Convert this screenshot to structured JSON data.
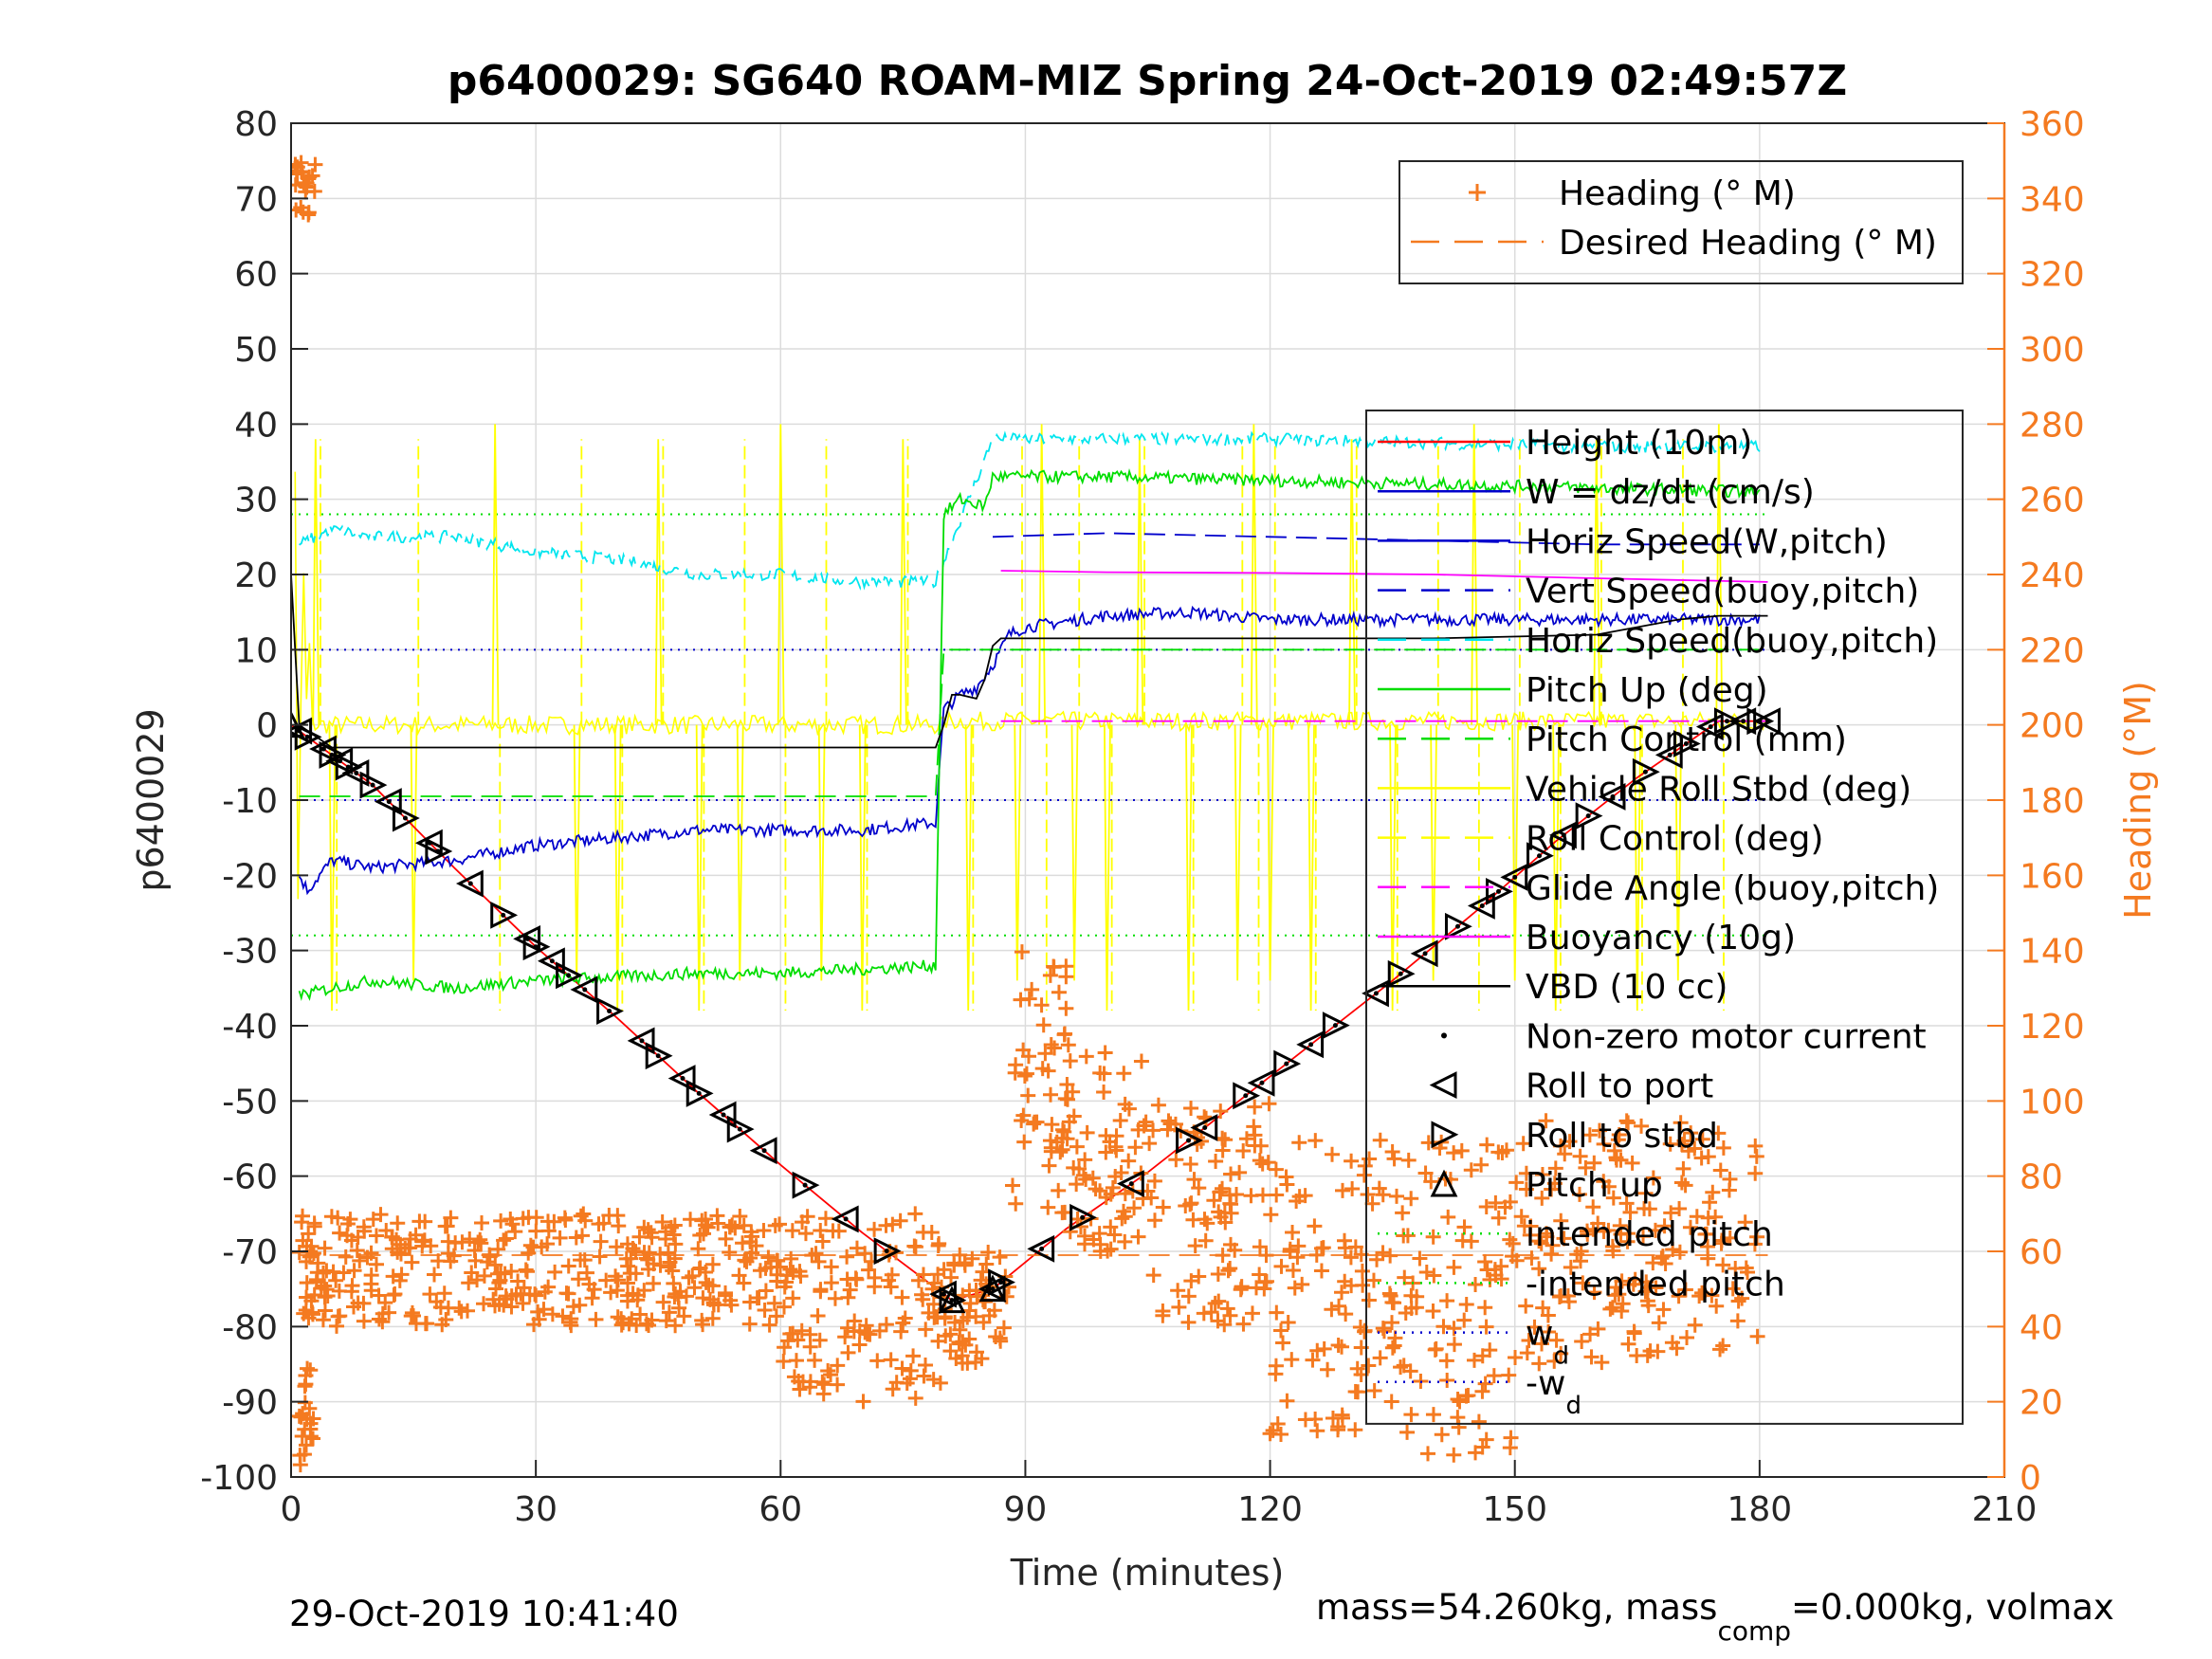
{
  "chart_data": {
    "type": "line",
    "title": "p6400029: SG640 ROAM-MIZ Spring 24-Oct-2019 02:49:57Z",
    "xlabel": "Time (minutes)",
    "ylabel": "p6400029",
    "y2label": "Heading (°M)",
    "xlim": [
      0,
      210
    ],
    "ylim": [
      -100,
      80
    ],
    "y2lim": [
      0,
      360
    ],
    "xticks": [
      0,
      30,
      60,
      90,
      120,
      150,
      180,
      210
    ],
    "yticks": [
      -100,
      -90,
      -80,
      -70,
      -60,
      -50,
      -40,
      -30,
      -20,
      -10,
      0,
      10,
      20,
      30,
      40,
      50,
      60,
      70,
      80
    ],
    "y2ticks": [
      0,
      20,
      40,
      60,
      80,
      100,
      120,
      140,
      160,
      180,
      200,
      220,
      240,
      260,
      280,
      300,
      320,
      340,
      360
    ],
    "grid": true,
    "footer_left": "29-Oct-2019 10:41:40",
    "footer_right_pre": "mass=54.260kg, mass",
    "footer_right_sub": "comp",
    "footer_right_post": "=0.000kg, volmax",
    "legend_heading": {
      "placement": "top-right",
      "entries": [
        {
          "label": "Heading (° M)",
          "color": "#f47a20",
          "style": "plus"
        },
        {
          "label": "Desired Heading (° M)",
          "color": "#f47a20",
          "style": "dash"
        }
      ]
    },
    "legend_main": {
      "placement": "right",
      "entries": [
        {
          "label": "Height (10m)",
          "color": "#ff0000",
          "style": "solid"
        },
        {
          "label": "W = dz/dt (cm/s)",
          "color": "#0000cc",
          "style": "solid"
        },
        {
          "label": "Horiz Speed(W,pitch)",
          "color": "#0000cc",
          "style": "solid"
        },
        {
          "label": "Vert Speed(buoy,pitch)",
          "color": "#0000cc",
          "style": "dash"
        },
        {
          "label": "Horiz Speed(buoy,pitch)",
          "color": "#00e5ee",
          "style": "dash"
        },
        {
          "label": "Pitch Up (deg)",
          "color": "#00dd00",
          "style": "solid"
        },
        {
          "label": "Pitch Control (mm)",
          "color": "#00dd00",
          "style": "dash"
        },
        {
          "label": "Vehicle Roll Stbd (deg)",
          "color": "#ffff00",
          "style": "solid"
        },
        {
          "label": "Roll Control (deg)",
          "color": "#ffff00",
          "style": "dash"
        },
        {
          "label": "Glide Angle (buoy,pitch)",
          "color": "#ff00ff",
          "style": "dash"
        },
        {
          "label": "Buoyancy (10g)",
          "color": "#ff00ff",
          "style": "solid"
        },
        {
          "label": "VBD (10 cc)",
          "color": "#000000",
          "style": "solid"
        },
        {
          "label": "Non-zero motor current",
          "color": "#000000",
          "style": "dot"
        },
        {
          "label": "Roll to port",
          "color": "#000000",
          "style": "tri-left"
        },
        {
          "label": "Roll to stbd",
          "color": "#000000",
          "style": "tri-right"
        },
        {
          "label": "Pitch up",
          "color": "#000000",
          "style": "tri-up"
        },
        {
          "label": "intended pitch",
          "color": "#00dd00",
          "style": "dotted"
        },
        {
          "label": "-intended pitch",
          "color": "#00dd00",
          "style": "dotted"
        },
        {
          "label": "w",
          "sub": "d",
          "color": "#0000cc",
          "style": "dotted"
        },
        {
          "label": "-w",
          "sub": "d",
          "color": "#0000cc",
          "style": "dotted"
        }
      ]
    },
    "series": [
      {
        "name": "Height (10m)",
        "axis": "left",
        "color": "#ff0000",
        "x": [
          0,
          10,
          20,
          30,
          40,
          50,
          60,
          70,
          81,
          86,
          95,
          105,
          115,
          125,
          135,
          145,
          155,
          165,
          175,
          181
        ],
        "values": [
          0,
          -8,
          -19,
          -29.5,
          -39,
          -49,
          -58.5,
          -67.5,
          -76.5,
          -75,
          -67,
          -59.5,
          -51,
          -42.5,
          -34,
          -25,
          -15.5,
          -7,
          0.5,
          0.5
        ]
      },
      {
        "name": "W = dz/dt (cm/s)",
        "axis": "left",
        "color": "#0000cc",
        "x": [
          1,
          2,
          5,
          10,
          20,
          30,
          40,
          50,
          60,
          70,
          79,
          80,
          82,
          84,
          86,
          88,
          90,
          100,
          110,
          120,
          130,
          140,
          150,
          160,
          170,
          180
        ],
        "values": [
          -20,
          -22,
          -18,
          -19,
          -18,
          -16,
          -15,
          -14,
          -14,
          -14,
          -13,
          2,
          4,
          5,
          8,
          12,
          13,
          14.5,
          15,
          14,
          14,
          14,
          14,
          14,
          14,
          14
        ]
      },
      {
        "name": "Vert Speed(buoy,pitch)",
        "axis": "left",
        "color": "#0000cc",
        "x": [
          86,
          100,
          120,
          140,
          160,
          180
        ],
        "values": [
          25,
          25.5,
          25,
          24.5,
          24,
          24
        ]
      },
      {
        "name": "Horiz Speed(buoy,pitch)",
        "axis": "left",
        "color": "#00e5ee",
        "x": [
          1,
          5,
          10,
          20,
          30,
          40,
          50,
          60,
          70,
          79,
          86,
          100,
          120,
          140,
          160,
          180
        ],
        "values": [
          24,
          26,
          25,
          25,
          23,
          22,
          20,
          20,
          19,
          19,
          38,
          38,
          38,
          37.5,
          37,
          37
        ]
      },
      {
        "name": "Pitch Up (deg)",
        "axis": "left",
        "color": "#00dd00",
        "x": [
          1,
          5,
          10,
          20,
          30,
          40,
          50,
          60,
          70,
          79,
          80,
          82,
          85,
          86,
          90,
          100,
          120,
          140,
          160,
          180
        ],
        "values": [
          -36,
          -35,
          -34,
          -35,
          -34,
          -33.5,
          -33,
          -33,
          -32.5,
          -32,
          28,
          30,
          29,
          33,
          33,
          33,
          32.5,
          32,
          31.5,
          31
        ]
      },
      {
        "name": "Pitch Control (mm)",
        "axis": "left",
        "color": "#00dd00",
        "x": [
          1,
          79,
          80,
          181
        ],
        "values": [
          -9.5,
          -9.5,
          10,
          10
        ]
      },
      {
        "name": "Buoyancy (10g)",
        "axis": "left",
        "color": "#ff00ff",
        "x": [
          87,
          100,
          120,
          140,
          160,
          181
        ],
        "values": [
          20.5,
          20.3,
          20.2,
          20,
          19.5,
          19
        ]
      },
      {
        "name": "Glide Angle (buoy,pitch)",
        "axis": "left",
        "color": "#ff00ff",
        "x": [
          87,
          181
        ],
        "values": [
          0.5,
          0.5
        ]
      },
      {
        "name": "VBD (10 cc)",
        "axis": "left",
        "color": "#000000",
        "x": [
          0,
          1,
          5,
          10,
          79,
          80,
          81,
          82,
          84,
          85,
          86,
          87,
          100,
          130,
          140,
          160,
          170,
          175,
          181
        ],
        "values": [
          20,
          0,
          -3,
          -3,
          -3,
          0,
          4,
          4,
          3.5,
          6,
          10.5,
          11.5,
          11.5,
          11.5,
          11.5,
          12,
          14,
          14.5,
          14.5
        ]
      },
      {
        "name": "Desired Heading (° M)",
        "axis": "right",
        "color": "#f47a20",
        "x": [
          1,
          181
        ],
        "values": [
          59,
          59
        ]
      }
    ],
    "reference_lines": [
      {
        "name": "intended pitch",
        "axis": "left",
        "value": 28,
        "color": "#00dd00"
      },
      {
        "name": "-intended pitch",
        "axis": "left",
        "value": -28,
        "color": "#00dd00"
      },
      {
        "name": "w_d",
        "axis": "left",
        "value": 10,
        "color": "#0000cc"
      },
      {
        "name": "-w_d",
        "axis": "left",
        "value": -10,
        "color": "#0000cc"
      }
    ],
    "roll_spikes_x": [
      3,
      5,
      15,
      25,
      35,
      40,
      45,
      50,
      55,
      60,
      65,
      70,
      75,
      83,
      89,
      92,
      96,
      100,
      104,
      110,
      116,
      118,
      120,
      125,
      130,
      135,
      140,
      145,
      150,
      155,
      160,
      165,
      170,
      175
    ],
    "markers": {
      "down_x": [
        1,
        2,
        4,
        5,
        6,
        7,
        8,
        10,
        12,
        14,
        17,
        18,
        22,
        26,
        29,
        30,
        32,
        34,
        36,
        39,
        43,
        45,
        48,
        50,
        53,
        55,
        58,
        63,
        68,
        73,
        80,
        81
      ],
      "up_x": [
        86,
        87,
        92,
        97,
        103,
        110,
        112,
        117,
        119,
        122,
        125,
        128,
        133,
        136,
        139,
        143,
        146,
        148,
        150,
        153,
        156,
        159,
        162,
        166,
        169,
        171,
        174,
        176,
        178,
        180,
        181
      ]
    },
    "heading_scatter": {
      "axis": "right",
      "clusters": [
        {
          "x": [
            0.5,
            3
          ],
          "y": [
            335,
            350
          ]
        },
        {
          "x": [
            1,
            3
          ],
          "y": [
            0,
            30
          ]
        },
        {
          "x": [
            1,
            30
          ],
          "y": [
            40,
            70
          ]
        },
        {
          "x": [
            30,
            60
          ],
          "y": [
            40,
            70
          ]
        },
        {
          "x": [
            60,
            80
          ],
          "y": [
            20,
            70
          ]
        },
        {
          "x": [
            80,
            88
          ],
          "y": [
            30,
            60
          ]
        },
        {
          "x": [
            88,
            95
          ],
          "y": [
            70,
            140
          ]
        },
        {
          "x": [
            95,
            105
          ],
          "y": [
            60,
            115
          ]
        },
        {
          "x": [
            105,
            120
          ],
          "y": [
            40,
            100
          ]
        },
        {
          "x": [
            120,
            135
          ],
          "y": [
            10,
            90
          ]
        },
        {
          "x": [
            135,
            150
          ],
          "y": [
            5,
            90
          ]
        },
        {
          "x": [
            150,
            180
          ],
          "y": [
            30,
            95
          ]
        }
      ]
    }
  }
}
